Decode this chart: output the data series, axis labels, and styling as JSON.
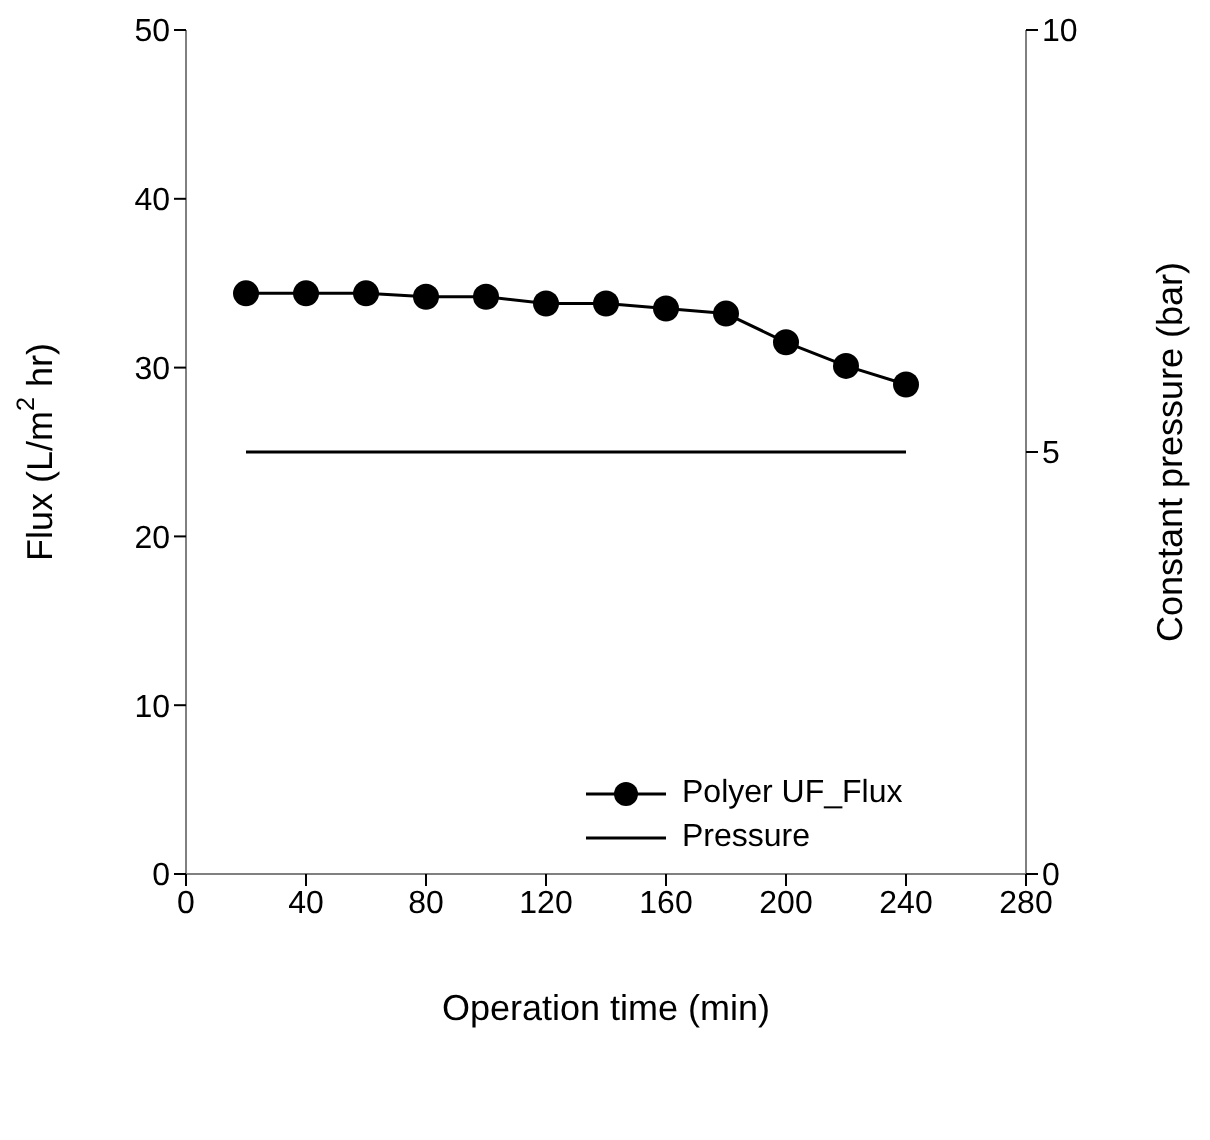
{
  "chart_data": {
    "type": "line",
    "xlabel": "Operation time (min)",
    "ylabel": "Flux (L/m$^{2}$ hr)",
    "y2label": "Constant pressure (bar)",
    "x": [
      20,
      40,
      60,
      80,
      100,
      120,
      140,
      160,
      180,
      200,
      220,
      240
    ],
    "series": [
      {
        "name": "Polyer UF_Flux",
        "color": "#000000",
        "marker": "circle",
        "values": [
          34.4,
          34.4,
          34.4,
          34.2,
          34.2,
          33.8,
          33.8,
          33.5,
          33.2,
          31.5,
          30.1,
          29.0
        ]
      },
      {
        "name": "Pressure",
        "color": "#000000",
        "marker": "none",
        "axis": "y2",
        "x": [
          20,
          240
        ],
        "values": [
          5,
          5
        ]
      }
    ],
    "xlim": [
      0,
      280
    ],
    "xticks": [
      0,
      40,
      80,
      120,
      160,
      200,
      240,
      280
    ],
    "ylim": [
      0,
      50
    ],
    "yticks": [
      0,
      10,
      20,
      30,
      40,
      50
    ],
    "y2lim": [
      0,
      10
    ],
    "y2ticks": [
      0,
      5,
      10
    ],
    "grid": false,
    "legend": "bottom right",
    "line_style": "solid"
  }
}
